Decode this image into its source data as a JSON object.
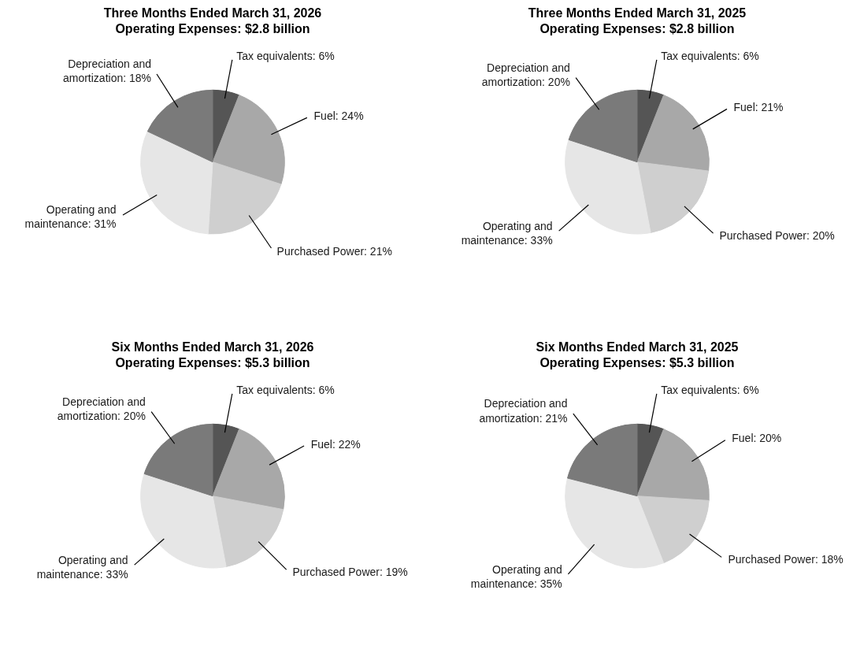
{
  "chart_data": [
    {
      "type": "pie",
      "title": "Three Months Ended March 31, 2026",
      "subtitle": "Operating Expenses: $2.8 billion",
      "categories": [
        "Tax equivalents",
        "Fuel",
        "Purchased Power",
        "Operating and maintenance",
        "Depreciation and amortization"
      ],
      "values": [
        6,
        24,
        21,
        31,
        18
      ],
      "value_labels": [
        "6%",
        "24%",
        "21%",
        "31%",
        "18%"
      ],
      "colors": [
        "#555555",
        "#a8a8a8",
        "#cfcfcf",
        "#e6e6e6",
        "#7a7a7a"
      ]
    },
    {
      "type": "pie",
      "title": "Three Months Ended March 31, 2025",
      "subtitle": "Operating Expenses: $2.8 billion",
      "categories": [
        "Tax equivalents",
        "Fuel",
        "Purchased Power",
        "Operating and maintenance",
        "Depreciation and amortization"
      ],
      "values": [
        6,
        21,
        20,
        33,
        20
      ],
      "value_labels": [
        "6%",
        "21%",
        "20%",
        "33%",
        "20%"
      ],
      "colors": [
        "#555555",
        "#a8a8a8",
        "#cfcfcf",
        "#e6e6e6",
        "#7a7a7a"
      ]
    },
    {
      "type": "pie",
      "title": "Six Months Ended March 31, 2026",
      "subtitle": "Operating Expenses: $5.3 billion",
      "categories": [
        "Tax equivalents",
        "Fuel",
        "Purchased Power",
        "Operating and maintenance",
        "Depreciation and amortization"
      ],
      "values": [
        6,
        22,
        19,
        33,
        20
      ],
      "value_labels": [
        "6%",
        "22%",
        "19%",
        "33%",
        "20%"
      ],
      "colors": [
        "#555555",
        "#a8a8a8",
        "#cfcfcf",
        "#e6e6e6",
        "#7a7a7a"
      ]
    },
    {
      "type": "pie",
      "title": "Six Months Ended March 31, 2025",
      "subtitle": "Operating Expenses: $5.3 billion",
      "categories": [
        "Tax equivalents",
        "Fuel",
        "Purchased Power",
        "Operating and maintenance",
        "Depreciation and amortization"
      ],
      "values": [
        6,
        20,
        18,
        35,
        21
      ],
      "value_labels": [
        "6%",
        "20%",
        "18%",
        "35%",
        "21%"
      ],
      "colors": [
        "#555555",
        "#a8a8a8",
        "#cfcfcf",
        "#e6e6e6",
        "#7a7a7a"
      ]
    }
  ]
}
